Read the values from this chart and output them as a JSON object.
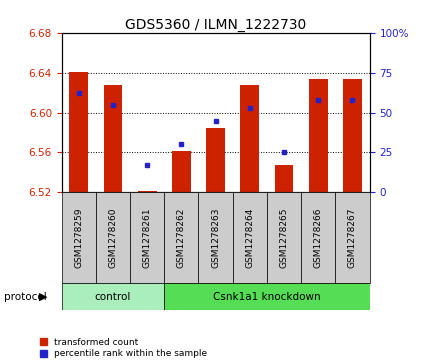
{
  "title": "GDS5360 / ILMN_1222730",
  "samples": [
    "GSM1278259",
    "GSM1278260",
    "GSM1278261",
    "GSM1278262",
    "GSM1278263",
    "GSM1278264",
    "GSM1278265",
    "GSM1278266",
    "GSM1278267"
  ],
  "red_values": [
    6.641,
    6.628,
    6.521,
    6.561,
    6.585,
    6.628,
    6.547,
    6.634,
    6.634
  ],
  "blue_values_pct": [
    62,
    55,
    17,
    30,
    45,
    53,
    25,
    58,
    58
  ],
  "ylim": [
    6.52,
    6.68
  ],
  "y2lim": [
    0,
    100
  ],
  "yticks": [
    6.52,
    6.56,
    6.6,
    6.64,
    6.68
  ],
  "y2ticks": [
    0,
    25,
    50,
    75,
    100
  ],
  "red_color": "#cc2200",
  "blue_color": "#2222cc",
  "bar_bottom": 6.52,
  "ctrl_color": "#aaeebb",
  "kd_color": "#55dd55",
  "gray_color": "#cccccc",
  "protocol_label": "protocol",
  "legend_red": "transformed count",
  "legend_blue": "percentile rank within the sample",
  "bar_width": 0.55,
  "tick_label_fontsize": 6.5,
  "title_fontsize": 10
}
